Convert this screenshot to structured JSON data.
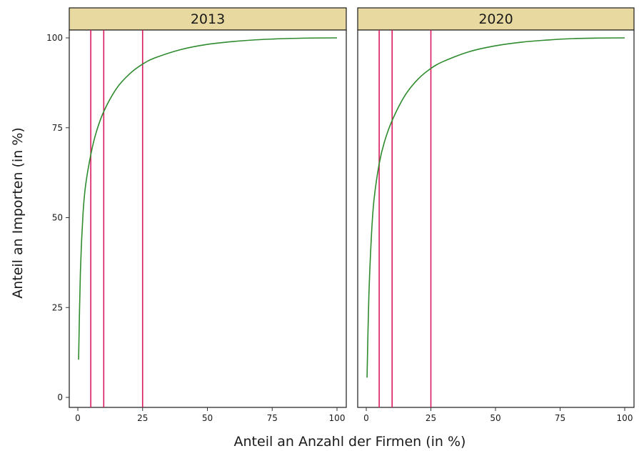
{
  "chart_data": {
    "type": "line",
    "xlabel": "Anteil an Anzahl der Firmen (in %)",
    "ylabel": "Anteil an Importen (in %)",
    "xlim": [
      0,
      100
    ],
    "ylim": [
      0,
      100
    ],
    "x_ticks": [
      0,
      25,
      50,
      75,
      100
    ],
    "y_ticks": [
      0,
      25,
      50,
      75,
      100
    ],
    "grid": false,
    "strip_color": "#e8d9a0",
    "line_color": "#2e8b2e",
    "vline_color": "#d81b60",
    "vlines": [
      5,
      10,
      25
    ],
    "panels": [
      {
        "label": "2013",
        "series": [
          {
            "x": [
              0.3,
              1,
              2,
              3,
              5,
              7,
              10,
              15,
              20,
              25,
              30,
              40,
              50,
              60,
              70,
              80,
              90,
              100
            ],
            "y": [
              10.5,
              35,
              51,
              59,
              67.5,
              73.5,
              79.5,
              86,
              90,
              92.7,
              94.5,
              96.8,
              98.2,
              99,
              99.5,
              99.8,
              99.95,
              100
            ]
          }
        ]
      },
      {
        "label": "2020",
        "series": [
          {
            "x": [
              0.3,
              1,
              2,
              3,
              5,
              7,
              10,
              15,
              20,
              25,
              30,
              40,
              50,
              60,
              70,
              80,
              90,
              100
            ],
            "y": [
              5.5,
              28,
              45,
              55,
              65,
              71,
              77,
              84,
              88.5,
              91.5,
              93.5,
              96.2,
              97.8,
              98.8,
              99.4,
              99.8,
              99.95,
              100
            ]
          }
        ]
      }
    ]
  }
}
